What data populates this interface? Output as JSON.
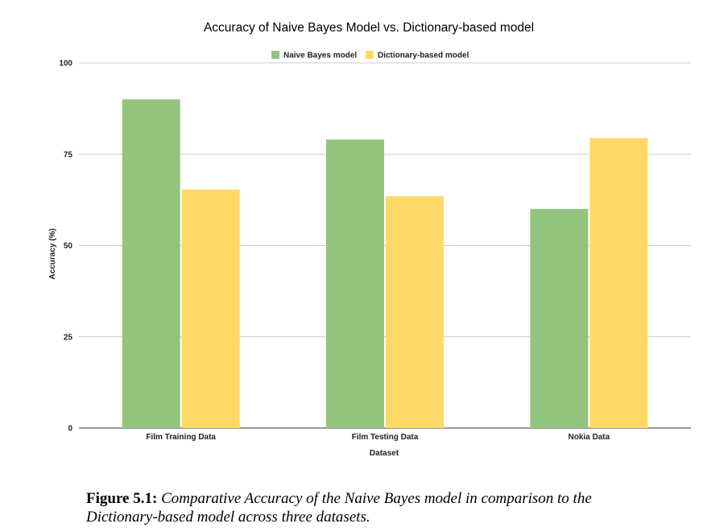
{
  "chart_data": {
    "type": "bar",
    "title": "Accuracy of Naive Bayes Model vs. Dictionary-based model",
    "xlabel": "Dataset",
    "ylabel": "Accuracy (%)",
    "categories": [
      "Film Training Data",
      "Film Testing Data",
      "Nokia Data"
    ],
    "series": [
      {
        "name": "Naive Bayes model",
        "color": "#93c47d",
        "values": [
          90,
          79,
          60
        ]
      },
      {
        "name": "Dictionary-based model",
        "color": "#ffd966",
        "values": [
          65.3,
          63.5,
          79.4
        ]
      }
    ],
    "ylim": [
      0,
      100
    ],
    "yticks": [
      "0",
      "25",
      "50",
      "75",
      "100"
    ],
    "grid": true,
    "legend_position": "top-center"
  },
  "caption": {
    "label": "Figure 5.1:",
    "text": "Comparative Accuracy of the Naive Bayes model in comparison to the Dictionary-based model across three datasets."
  }
}
